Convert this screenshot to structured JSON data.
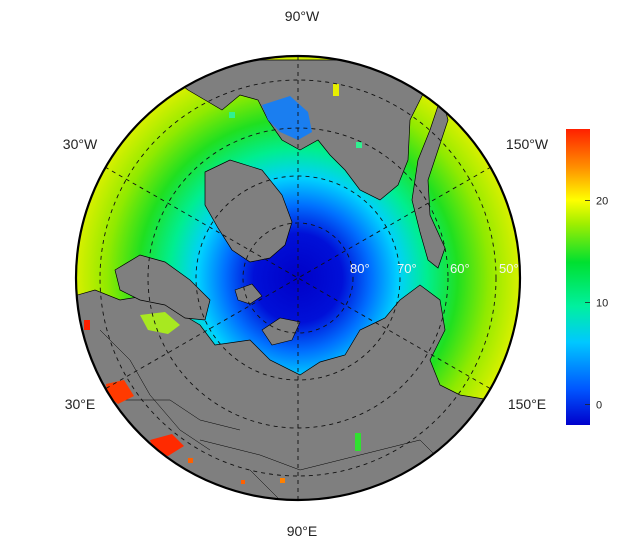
{
  "map": {
    "projection": "north-polar-stereographic",
    "center": "North Pole",
    "graticule": "dashed",
    "longitude_labels": [
      {
        "id": "lon-top",
        "text": "90°W"
      },
      {
        "id": "lon-upper-left",
        "text": "30°W"
      },
      {
        "id": "lon-upper-right",
        "text": "150°W"
      },
      {
        "id": "lon-lower-left",
        "text": "30°E"
      },
      {
        "id": "lon-lower-right",
        "text": "150°E"
      },
      {
        "id": "lon-bottom",
        "text": "90°E"
      }
    ],
    "latitude_labels": [
      "80°",
      "70°",
      "60°",
      "50°"
    ],
    "land_color": "#7f7f7f",
    "border_color": "#000000"
  },
  "colorbar": {
    "palette": "rainbow",
    "colors": [
      "#0000cc",
      "#0055ff",
      "#00c8ff",
      "#00f0a0",
      "#00e030",
      "#a0ee00",
      "#ffff00",
      "#ff9000",
      "#ff2000"
    ],
    "ticks": [
      "0",
      "10",
      "20"
    ],
    "range": [
      -2,
      27
    ]
  }
}
